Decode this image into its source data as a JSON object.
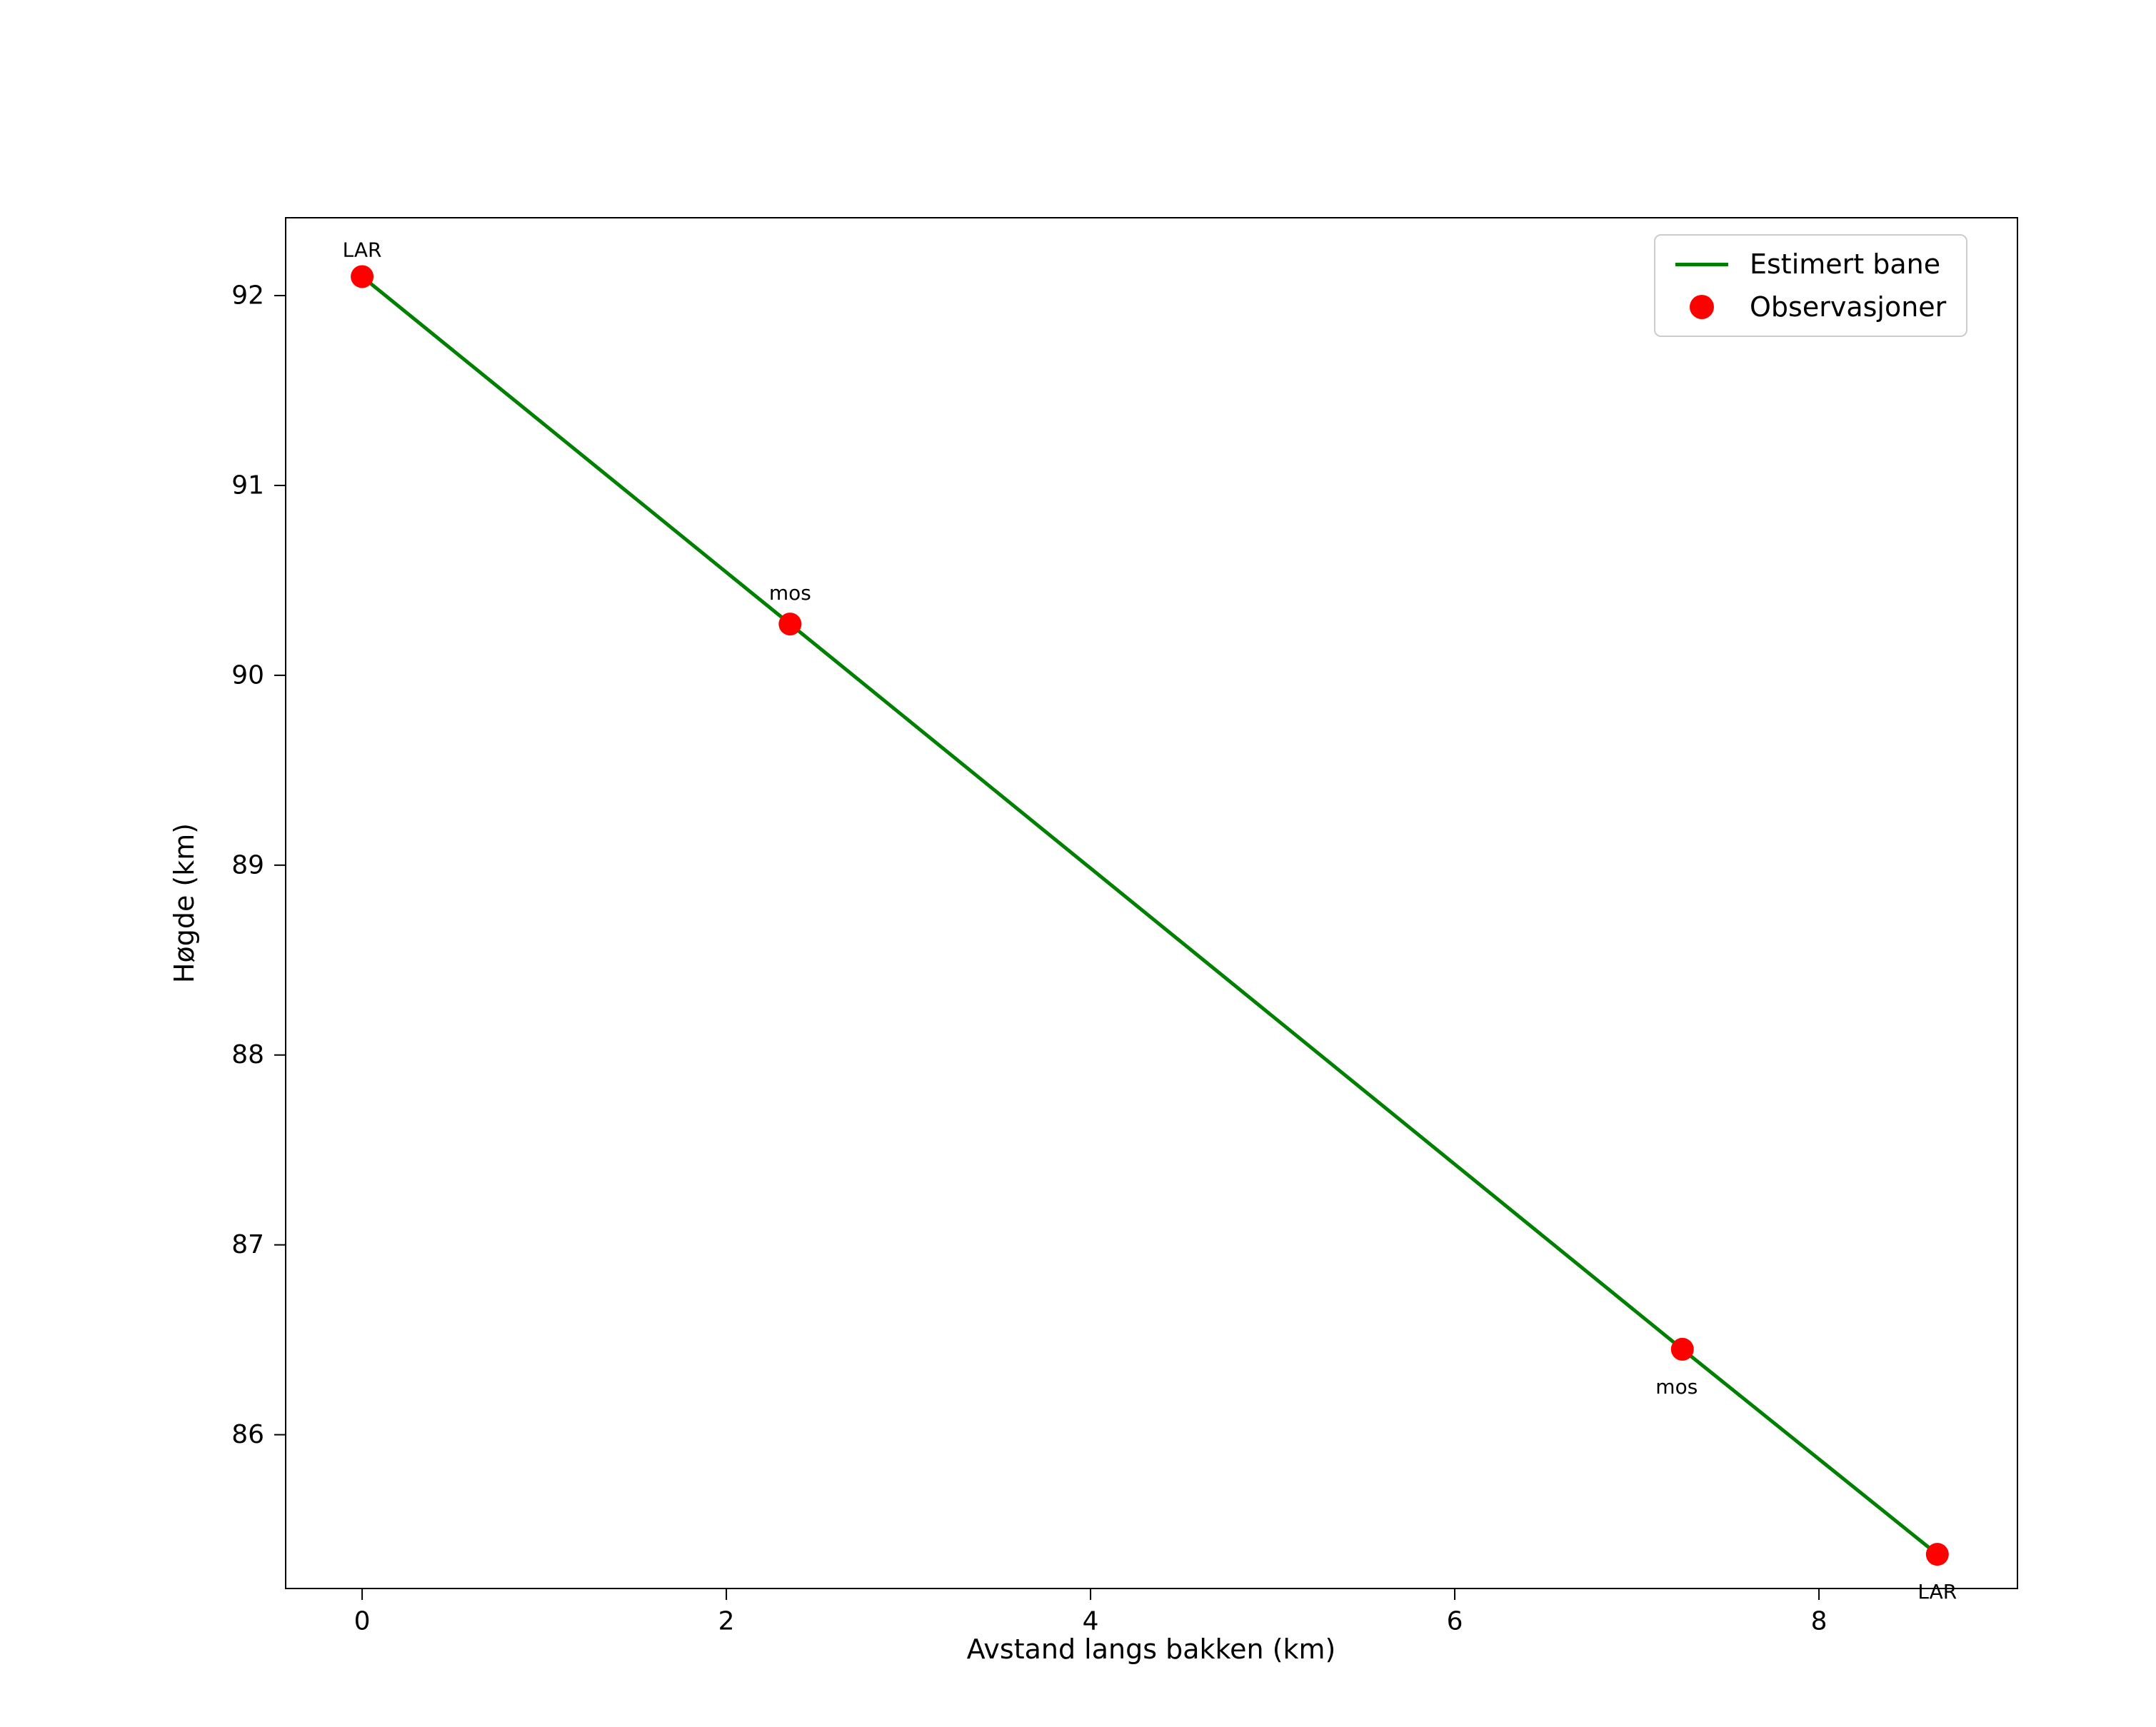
{
  "chart_data": {
    "type": "line",
    "title": "",
    "xlabel": "Avstand langs bakken (km)",
    "ylabel": "Høgde (km)",
    "xlim": [
      -0.42,
      9.09
    ],
    "ylim": [
      85.19,
      92.41
    ],
    "xticks": [
      0,
      2,
      4,
      6,
      8
    ],
    "yticks": [
      86,
      87,
      88,
      89,
      90,
      91,
      92
    ],
    "grid": false,
    "legend_position": "upper right",
    "series": [
      {
        "name": "Estimert bane",
        "type": "line",
        "color": "#008000",
        "x": [
          0,
          2.35,
          7.25,
          8.65
        ],
        "y": [
          92.1,
          90.27,
          86.45,
          85.37
        ]
      },
      {
        "name": "Observasjoner",
        "type": "scatter",
        "color": "#ff0000",
        "marker": "circle",
        "points": [
          {
            "x": 0,
            "y": 92.1,
            "label": "LAR",
            "label_dx": 0,
            "label_dy": -28
          },
          {
            "x": 2.35,
            "y": 90.27,
            "label": "mos",
            "label_dx": 0,
            "label_dy": -34
          },
          {
            "x": 7.25,
            "y": 86.45,
            "label": "mos",
            "label_dx": -8,
            "label_dy": 62
          },
          {
            "x": 8.65,
            "y": 85.37,
            "label": "LAR",
            "label_dx": 0,
            "label_dy": 62
          }
        ]
      }
    ]
  }
}
